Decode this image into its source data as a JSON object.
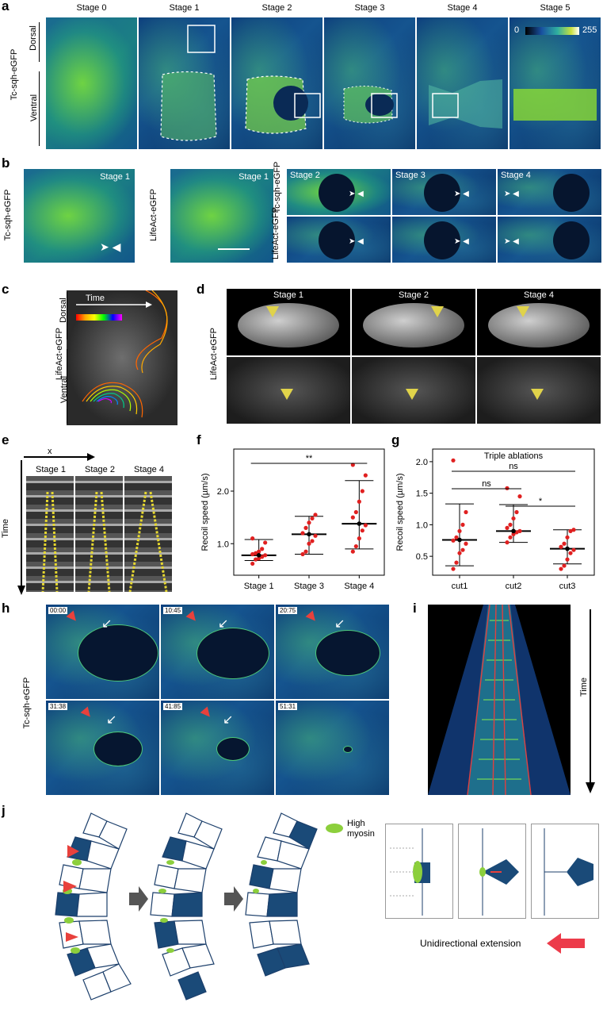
{
  "panels": {
    "a": {
      "letter": "a",
      "stages": [
        "Stage 0",
        "Stage 1",
        "Stage 2",
        "Stage 3",
        "Stage 4",
        "Stage 5"
      ],
      "row_label": "Tc-sqh-eGFP",
      "dorsal": "Dorsal",
      "ventral": "Ventral",
      "scale_min": "0",
      "scale_max": "255"
    },
    "b": {
      "letter": "b",
      "img1_stage": "Stage 1",
      "img1_label": "Tc-sqh-eGFP",
      "img2_stage": "Stage 1",
      "img2_label": "LifeAct-eGFP",
      "grid_stages": [
        "Stage 2",
        "Stage 3",
        "Stage 4"
      ],
      "grid_row1": "Tc-sqh-eGFP",
      "grid_row2": "LifeAct-eGFP"
    },
    "c": {
      "letter": "c",
      "label": "LifeAct-eGFP",
      "dorsal": "Dorsal",
      "ventral": "Ventral",
      "time": "Time"
    },
    "d": {
      "letter": "d",
      "label": "LifeAct-eGFP",
      "stages": [
        "Stage 1",
        "Stage 2",
        "Stage 4"
      ]
    },
    "e": {
      "letter": "e",
      "x_label": "x",
      "stages": [
        "Stage 1",
        "Stage 2",
        "Stage 4"
      ],
      "time": "Time"
    },
    "f": {
      "letter": "f"
    },
    "g": {
      "letter": "g"
    },
    "h": {
      "letter": "h",
      "label": "Tc-sqh-eGFP",
      "timestamps": [
        "00:00",
        "10:45",
        "20:75",
        "31:38",
        "41:85",
        "51:31"
      ]
    },
    "i": {
      "letter": "i",
      "time": "Time"
    },
    "j": {
      "letter": "j",
      "legend": "High myosin",
      "caption": "Unidirectional extension"
    }
  },
  "chart_data": [
    {
      "panel": "f",
      "type": "scatter",
      "title": "",
      "ylabel": "Recoil speed (µm/s)",
      "categories": [
        "Stage 1",
        "Stage 3",
        "Stage 4"
      ],
      "yticks": [
        "1.0",
        "2.0"
      ],
      "ylim": [
        0.4,
        2.8
      ],
      "significance": [
        {
          "from": "Stage 1",
          "to": "Stage 4",
          "label": "**"
        }
      ],
      "series": [
        {
          "category": "Stage 1",
          "mean": 0.78,
          "sd_low": 0.68,
          "sd_high": 1.08,
          "points": [
            0.62,
            0.7,
            0.72,
            0.75,
            0.78,
            0.8,
            0.82,
            0.85,
            0.9,
            1.02,
            1.1
          ]
        },
        {
          "category": "Stage 3",
          "mean": 1.18,
          "sd_low": 0.8,
          "sd_high": 1.52,
          "points": [
            0.8,
            0.85,
            1.0,
            1.05,
            1.15,
            1.2,
            1.3,
            1.4,
            1.48,
            1.55
          ]
        },
        {
          "category": "Stage 4",
          "mean": 1.38,
          "sd_low": 0.9,
          "sd_high": 2.2,
          "points": [
            0.85,
            0.95,
            1.1,
            1.25,
            1.35,
            1.5,
            1.6,
            1.8,
            2.0,
            2.3,
            2.5
          ]
        }
      ]
    },
    {
      "panel": "g",
      "type": "scatter",
      "title": "Triple ablations",
      "ylabel": "Recoil speed (µm/s)",
      "categories": [
        "cut1",
        "cut2",
        "cut3"
      ],
      "yticks": [
        "0.5",
        "1.0",
        "1.5",
        "2.0"
      ],
      "ylim": [
        0.2,
        2.2
      ],
      "significance": [
        {
          "from": "cut1",
          "to": "cut3",
          "label": "ns"
        },
        {
          "from": "cut1",
          "to": "cut2",
          "label": "ns"
        },
        {
          "from": "cut2",
          "to": "cut3",
          "label": "*"
        }
      ],
      "series": [
        {
          "category": "cut1",
          "mean": 0.76,
          "sd_low": 0.35,
          "sd_high": 1.33,
          "points": [
            0.3,
            0.4,
            0.55,
            0.6,
            0.7,
            0.75,
            0.8,
            0.9,
            1.0,
            1.2,
            2.02
          ]
        },
        {
          "category": "cut2",
          "mean": 0.9,
          "sd_low": 0.72,
          "sd_high": 1.32,
          "points": [
            0.72,
            0.8,
            0.85,
            0.88,
            0.9,
            0.95,
            1.0,
            1.1,
            1.2,
            1.45,
            1.58
          ]
        },
        {
          "category": "cut3",
          "mean": 0.62,
          "sd_low": 0.38,
          "sd_high": 0.92,
          "points": [
            0.3,
            0.35,
            0.45,
            0.55,
            0.6,
            0.65,
            0.7,
            0.8,
            0.9,
            0.92
          ]
        }
      ]
    }
  ]
}
